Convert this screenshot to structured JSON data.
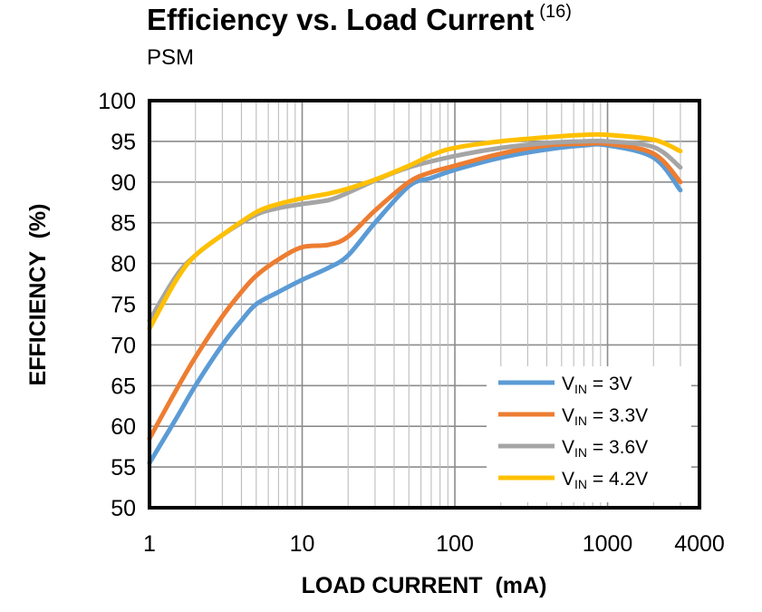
{
  "chart_data": {
    "type": "line",
    "title": "Efficiency vs. Load Current",
    "title_note": "(16)",
    "subtitle": "PSM",
    "xlabel": "LOAD CURRENT  (mA)",
    "ylabel": "EFFICIENCY  (%)",
    "x_scale": "log",
    "xlim": [
      1,
      4000
    ],
    "ylim": [
      50,
      100
    ],
    "x_ticks": [
      {
        "value": 1,
        "label": "1"
      },
      {
        "value": 10,
        "label": "10"
      },
      {
        "value": 100,
        "label": "100"
      },
      {
        "value": 1000,
        "label": "1000"
      },
      {
        "value": 4000,
        "label": "4000"
      }
    ],
    "y_ticks": [
      50,
      55,
      60,
      65,
      70,
      75,
      80,
      85,
      90,
      95,
      100
    ],
    "grid": true,
    "legend_position": "bottom-right",
    "series": [
      {
        "name_main": "V",
        "name_sub": "IN",
        "name_rest": " = 3V",
        "color": "#5B9BD5",
        "points": [
          [
            1,
            55.5
          ],
          [
            1.5,
            61
          ],
          [
            2,
            65
          ],
          [
            3,
            70
          ],
          [
            4,
            73
          ],
          [
            5,
            75
          ],
          [
            7,
            76.5
          ],
          [
            10,
            78
          ],
          [
            15,
            79.5
          ],
          [
            20,
            81
          ],
          [
            30,
            85
          ],
          [
            50,
            89.5
          ],
          [
            70,
            90.5
          ],
          [
            100,
            91.5
          ],
          [
            200,
            93
          ],
          [
            400,
            94
          ],
          [
            700,
            94.5
          ],
          [
            1000,
            94.5
          ],
          [
            2000,
            93
          ],
          [
            3000,
            89
          ]
        ]
      },
      {
        "name_main": "V",
        "name_sub": "IN",
        "name_rest": " = 3.3V",
        "color": "#ED7D31",
        "points": [
          [
            1,
            58.5
          ],
          [
            1.5,
            64.5
          ],
          [
            2,
            68.5
          ],
          [
            3,
            73.5
          ],
          [
            4,
            76.5
          ],
          [
            5,
            78.5
          ],
          [
            7,
            80.5
          ],
          [
            10,
            82
          ],
          [
            15,
            82.3
          ],
          [
            20,
            83.3
          ],
          [
            30,
            86.5
          ],
          [
            50,
            90
          ],
          [
            70,
            91.2
          ],
          [
            100,
            92
          ],
          [
            200,
            93.5
          ],
          [
            400,
            94.5
          ],
          [
            700,
            94.7
          ],
          [
            1000,
            94.7
          ],
          [
            2000,
            93.5
          ],
          [
            3000,
            90
          ]
        ]
      },
      {
        "name_main": "V",
        "name_sub": "IN",
        "name_rest": " = 3.6V",
        "color": "#A5A5A5",
        "points": [
          [
            1,
            73
          ],
          [
            1.5,
            78.5
          ],
          [
            2,
            81
          ],
          [
            3,
            83.5
          ],
          [
            5,
            86
          ],
          [
            7,
            86.8
          ],
          [
            10,
            87.3
          ],
          [
            15,
            87.8
          ],
          [
            20,
            88.7
          ],
          [
            30,
            90.2
          ],
          [
            50,
            91.8
          ],
          [
            100,
            93.2
          ],
          [
            200,
            94.2
          ],
          [
            400,
            94.8
          ],
          [
            700,
            95
          ],
          [
            1000,
            95
          ],
          [
            2000,
            94.3
          ],
          [
            3000,
            91.8
          ]
        ]
      },
      {
        "name_main": "V",
        "name_sub": "IN",
        "name_rest": " = 4.2V",
        "color": "#FFC000",
        "points": [
          [
            1,
            72
          ],
          [
            1.5,
            78
          ],
          [
            2,
            81
          ],
          [
            3,
            83.5
          ],
          [
            5,
            86.3
          ],
          [
            7,
            87.3
          ],
          [
            10,
            88
          ],
          [
            15,
            88.6
          ],
          [
            20,
            89.2
          ],
          [
            30,
            90.3
          ],
          [
            50,
            92
          ],
          [
            70,
            93.3
          ],
          [
            100,
            94.2
          ],
          [
            200,
            95
          ],
          [
            400,
            95.5
          ],
          [
            700,
            95.8
          ],
          [
            1000,
            95.8
          ],
          [
            2000,
            95.2
          ],
          [
            3000,
            93.8
          ]
        ]
      }
    ]
  }
}
